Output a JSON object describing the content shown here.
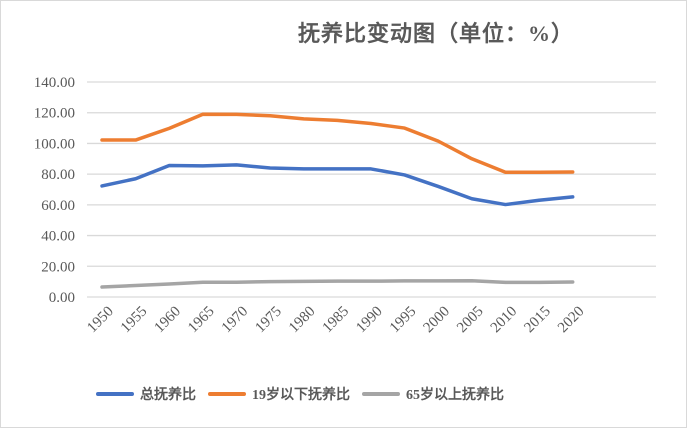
{
  "chart_data": {
    "type": "line",
    "title": "抚养比变动图（单位：%）",
    "xlabel": "",
    "ylabel": "",
    "x": [
      "1950",
      "1955",
      "1960",
      "1965",
      "1970",
      "1975",
      "1980",
      "1985",
      "1990",
      "1995",
      "2000",
      "2005",
      "2010",
      "2015",
      "2020"
    ],
    "ylim": [
      0,
      140
    ],
    "yticks": [
      "0.00",
      "20.00",
      "40.00",
      "60.00",
      "80.00",
      "100.00",
      "120.00",
      "140.00"
    ],
    "grid": true,
    "legend_position": "bottom",
    "series": [
      {
        "name": "总抚养比",
        "color": "#4472c4",
        "values": [
          72.3,
          77.0,
          85.6,
          85.4,
          86.0,
          84.0,
          83.4,
          83.4,
          83.4,
          79.5,
          72.0,
          64.0,
          60.2,
          63.0,
          65.2
        ]
      },
      {
        "name": "19岁以下抚养比",
        "color": "#ed7d31",
        "values": [
          102.2,
          102.2,
          109.8,
          119.0,
          118.9,
          118.0,
          116.0,
          115.0,
          113.0,
          110.0,
          101.5,
          90.0,
          81.2,
          81.2,
          81.4
        ]
      },
      {
        "name": "65岁以上抚养比",
        "color": "#a5a5a5",
        "values": [
          6.5,
          7.5,
          8.5,
          9.6,
          9.6,
          10.0,
          10.2,
          10.3,
          10.3,
          10.5,
          10.5,
          10.6,
          9.5,
          9.5,
          9.8
        ]
      }
    ]
  }
}
